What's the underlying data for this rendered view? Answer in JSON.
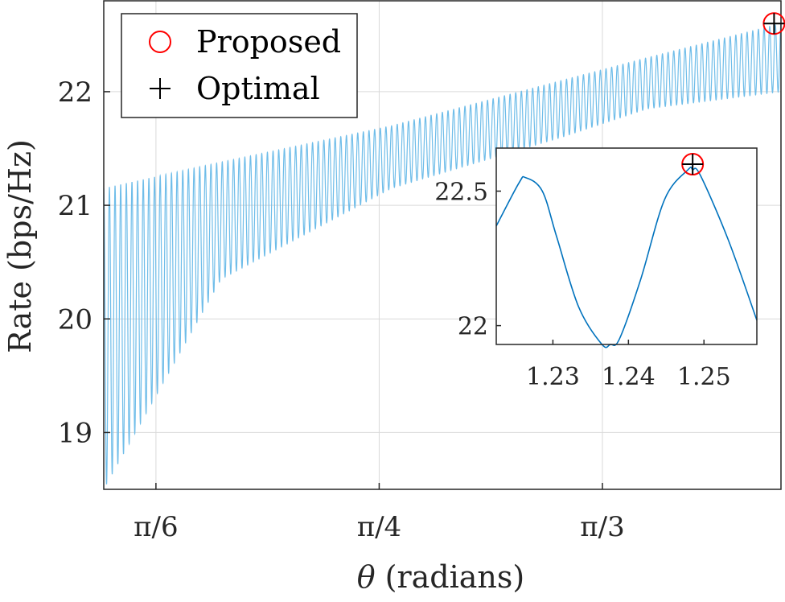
{
  "chart_data": [
    {
      "type": "line",
      "xlabel_symbol": "θ",
      "xlabel_unit": "(radians)",
      "ylabel": "Rate (bps/Hz)",
      "xticks": [
        {
          "value": 0.5236,
          "label": "π/6"
        },
        {
          "value": 0.7854,
          "label": "π/4"
        },
        {
          "value": 1.0472,
          "label": "π/3"
        }
      ],
      "yticks": [
        {
          "value": 19,
          "label": "19"
        },
        {
          "value": 20,
          "label": "20"
        },
        {
          "value": 21,
          "label": "21"
        },
        {
          "value": 22,
          "label": "22"
        }
      ],
      "xlim": [
        0.4624,
        1.2566
      ],
      "ylim": [
        18.5,
        22.8
      ],
      "grid": true,
      "legend_position": "top-left",
      "legend": [
        {
          "label": "Proposed",
          "marker": "circle",
          "color": "#ff0000"
        },
        {
          "label": "Optimal",
          "marker": "plus",
          "color": "#000000"
        }
      ],
      "series": [
        {
          "style": "oscillating-line",
          "color": "#6fbde9",
          "periods": 120,
          "upper_envelope": {
            "x": [
              0.4624,
              0.6,
              0.8,
              1.0,
              1.1,
              1.2566
            ],
            "y": [
              21.15,
              21.38,
              21.7,
              22.1,
              22.3,
              22.6
            ]
          },
          "lower_envelope": {
            "x": [
              0.4624,
              0.6,
              0.8,
              1.0,
              1.1,
              1.2566
            ],
            "y": [
              18.5,
              20.35,
              21.15,
              21.6,
              21.85,
              22.0
            ]
          }
        }
      ],
      "markers": [
        {
          "series": "Proposed",
          "x": 1.2485,
          "y": 22.6
        },
        {
          "series": "Optimal",
          "x": 1.2485,
          "y": 22.6
        }
      ]
    },
    {
      "type": "line",
      "role": "inset",
      "xticks": [
        {
          "value": 1.23,
          "label": "1.23"
        },
        {
          "value": 1.24,
          "label": "1.24"
        },
        {
          "value": 1.25,
          "label": "1.25"
        }
      ],
      "yticks": [
        {
          "value": 22,
          "label": "22"
        },
        {
          "value": 22.5,
          "label": "22.5"
        }
      ],
      "xlim": [
        1.2225,
        1.257
      ],
      "ylim": [
        21.93,
        22.66
      ],
      "grid": false,
      "series": [
        {
          "color": "#0072bd",
          "x": [
            1.2225,
            1.2255,
            1.2264,
            1.2286,
            1.2305,
            1.2334,
            1.2365,
            1.2376,
            1.2388,
            1.2416,
            1.2448,
            1.2479,
            1.2485,
            1.2495,
            1.2532,
            1.257
          ],
          "y": [
            22.37,
            22.53,
            22.55,
            22.5,
            22.33,
            22.07,
            21.93,
            21.93,
            21.95,
            22.17,
            22.47,
            22.58,
            22.58,
            22.56,
            22.32,
            22.02
          ]
        }
      ],
      "markers": [
        {
          "series": "Proposed",
          "x": 1.2485,
          "y": 22.6
        },
        {
          "series": "Optimal",
          "x": 1.2485,
          "y": 22.6
        }
      ]
    }
  ]
}
